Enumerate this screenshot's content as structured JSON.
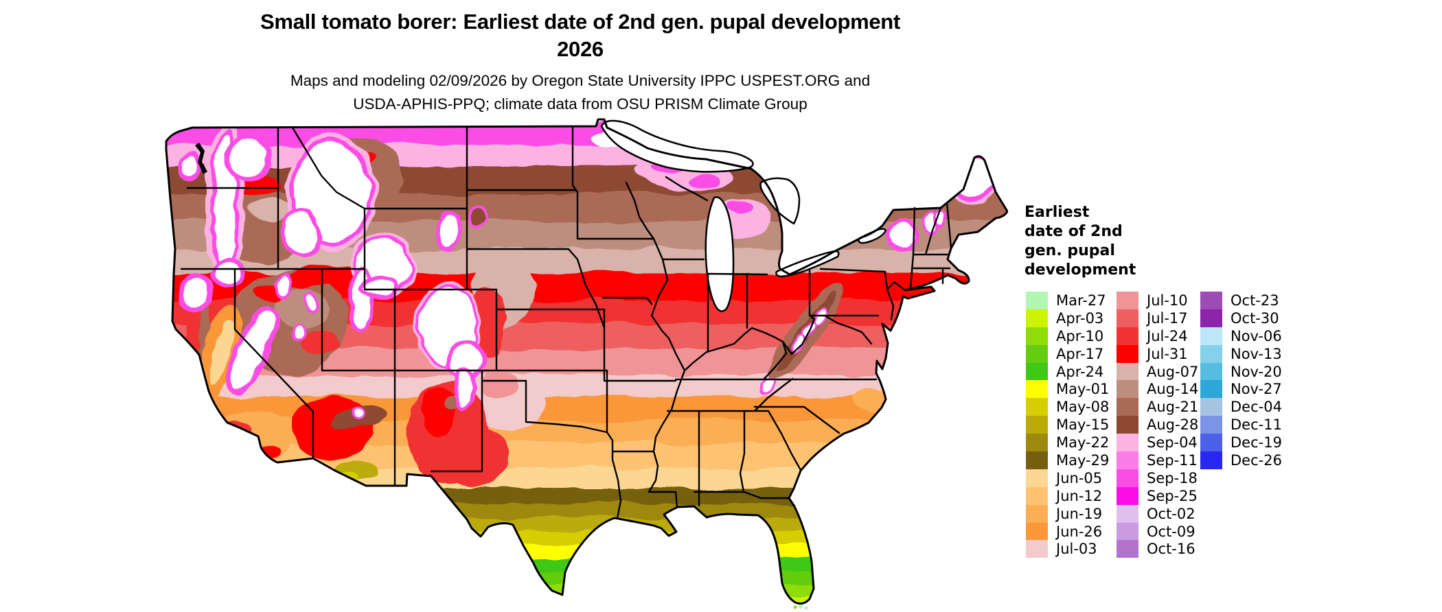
{
  "title": {
    "line1": "Small tomato borer: Earliest date of 2nd gen. pupal development",
    "line2": "2026"
  },
  "subtitle": {
    "line1": "Maps and modeling 02/09/2026 by Oregon State University IPPC USPEST.ORG and",
    "line2": "USDA-APHIS-PPQ; climate data from OSU PRISM Climate Group"
  },
  "legend": {
    "title": "Earliest\ndate of 2nd\ngen. pupal\ndevelopment",
    "columns": [
      [
        {
          "label": "Mar-27",
          "color": "#b3f5b3"
        },
        {
          "label": "Apr-03",
          "color": "#ccf402"
        },
        {
          "label": "Apr-10",
          "color": "#8fdc07"
        },
        {
          "label": "Apr-17",
          "color": "#64cd10"
        },
        {
          "label": "Apr-24",
          "color": "#3fc814"
        },
        {
          "label": "May-01",
          "color": "#ffff00"
        },
        {
          "label": "May-08",
          "color": "#d6ce00"
        },
        {
          "label": "May-15",
          "color": "#bcab07"
        },
        {
          "label": "May-22",
          "color": "#9e880e"
        },
        {
          "label": "May-29",
          "color": "#756011"
        },
        {
          "label": "Jun-05",
          "color": "#fbd793"
        },
        {
          "label": "Jun-12",
          "color": "#fdc373"
        },
        {
          "label": "Jun-19",
          "color": "#fcae55"
        },
        {
          "label": "Jun-26",
          "color": "#fa9737"
        },
        {
          "label": "Jul-03",
          "color": "#f3cbcd"
        }
      ],
      [
        {
          "label": "Jul-10",
          "color": "#ef9597"
        },
        {
          "label": "Jul-17",
          "color": "#ee5f5f"
        },
        {
          "label": "Jul-24",
          "color": "#f03232"
        },
        {
          "label": "Jul-31",
          "color": "#fe0000"
        },
        {
          "label": "Aug-07",
          "color": "#d9b2aa"
        },
        {
          "label": "Aug-14",
          "color": "#bd8d7e"
        },
        {
          "label": "Aug-21",
          "color": "#aa6a55"
        },
        {
          "label": "Aug-28",
          "color": "#8d4833"
        },
        {
          "label": "Sep-04",
          "color": "#fdb3e2"
        },
        {
          "label": "Sep-11",
          "color": "#fa7ce5"
        },
        {
          "label": "Sep-18",
          "color": "#fb4de5"
        },
        {
          "label": "Sep-25",
          "color": "#fb0de8"
        },
        {
          "label": "Oct-02",
          "color": "#debfee"
        },
        {
          "label": "Oct-09",
          "color": "#c99ce1"
        },
        {
          "label": "Oct-16",
          "color": "#b274cb"
        }
      ],
      [
        {
          "label": "Oct-23",
          "color": "#9d4cb4"
        },
        {
          "label": "Oct-30",
          "color": "#8c23a8"
        },
        {
          "label": "Nov-06",
          "color": "#bde7f8"
        },
        {
          "label": "Nov-13",
          "color": "#86d1ea"
        },
        {
          "label": "Nov-20",
          "color": "#55bde0"
        },
        {
          "label": "Nov-27",
          "color": "#2ca7d8"
        },
        {
          "label": "Dec-04",
          "color": "#a5c4e2"
        },
        {
          "label": "Dec-11",
          "color": "#7c94e6"
        },
        {
          "label": "Dec-19",
          "color": "#4d60ea"
        },
        {
          "label": "Dec-26",
          "color": "#2828ee"
        }
      ]
    ]
  },
  "chart_data": {
    "type": "choropleth_map",
    "region": "Continental United States",
    "title": "Small tomato borer: Earliest date of 2nd gen. pupal development 2026",
    "legend_title": "Earliest date of 2nd gen. pupal development",
    "categories": [
      "Mar-27",
      "Apr-03",
      "Apr-10",
      "Apr-17",
      "Apr-24",
      "May-01",
      "May-08",
      "May-15",
      "May-22",
      "May-29",
      "Jun-05",
      "Jun-12",
      "Jun-19",
      "Jun-26",
      "Jul-03",
      "Jul-10",
      "Jul-17",
      "Jul-24",
      "Jul-31",
      "Aug-07",
      "Aug-14",
      "Aug-21",
      "Aug-28",
      "Sep-04",
      "Sep-11",
      "Sep-18",
      "Sep-25",
      "Oct-02",
      "Oct-09",
      "Oct-16",
      "Oct-23",
      "Oct-30",
      "Nov-06",
      "Nov-13",
      "Nov-20",
      "Nov-27",
      "Dec-04",
      "Dec-11",
      "Dec-19",
      "Dec-26"
    ],
    "colors": [
      "#b3f5b3",
      "#ccf402",
      "#8fdc07",
      "#64cd10",
      "#3fc814",
      "#ffff00",
      "#d6ce00",
      "#bcab07",
      "#9e880e",
      "#756011",
      "#fbd793",
      "#fdc373",
      "#fcae55",
      "#fa9737",
      "#f3cbcd",
      "#ef9597",
      "#ee5f5f",
      "#f03232",
      "#fe0000",
      "#d9b2aa",
      "#bd8d7e",
      "#aa6a55",
      "#8d4833",
      "#fdb3e2",
      "#fa7ce5",
      "#fb4de5",
      "#fb0de8",
      "#debfee",
      "#c99ce1",
      "#b274cb",
      "#9d4cb4",
      "#8c23a8",
      "#bde7f8",
      "#86d1ea",
      "#55bde0",
      "#2ca7d8",
      "#a5c4e2",
      "#7c94e6",
      "#4d60ea",
      "#2828ee"
    ],
    "regional_values": [
      {
        "region": "Florida Keys / far south Florida",
        "value": "Mar-27 to Apr-10"
      },
      {
        "region": "Central Florida / lower Rio Grande Valley Texas",
        "value": "Apr-17 to May-01"
      },
      {
        "region": "Gulf Coast (south Texas to north Florida, south Georgia)",
        "value": "May-08 to May-29"
      },
      {
        "region": "Southern Plains, Southeast (OK, AR, TN, Carolinas)",
        "value": "Jun-05 to Jun-26"
      },
      {
        "region": "Central Plains and mid-Atlantic (KS, MO, VA)",
        "value": "Jul-03 to Jul-17"
      },
      {
        "region": "Corn Belt (NE, IA, IL, IN, OH, PA)",
        "value": "Jul-24 to Jul-31"
      },
      {
        "region": "Northern Plains, Great Lakes, New England",
        "value": "Aug-07 to Aug-28"
      },
      {
        "region": "Northern Minnesota, Upper Michigan, northern Maine, mountain fringes",
        "value": "Sep-04 to Sep-25"
      },
      {
        "region": "High mountains of the West (Cascades, Sierra, Rockies)",
        "value": "no 2nd gen. pupal development (white)"
      }
    ]
  }
}
